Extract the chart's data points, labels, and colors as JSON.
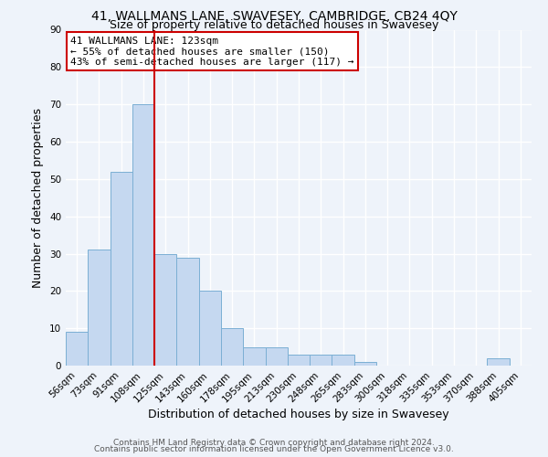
{
  "title": "41, WALLMANS LANE, SWAVESEY, CAMBRIDGE, CB24 4QY",
  "subtitle": "Size of property relative to detached houses in Swavesey",
  "xlabel": "Distribution of detached houses by size in Swavesey",
  "ylabel": "Number of detached properties",
  "bin_labels": [
    "56sqm",
    "73sqm",
    "91sqm",
    "108sqm",
    "125sqm",
    "143sqm",
    "160sqm",
    "178sqm",
    "195sqm",
    "213sqm",
    "230sqm",
    "248sqm",
    "265sqm",
    "283sqm",
    "300sqm",
    "318sqm",
    "335sqm",
    "353sqm",
    "370sqm",
    "388sqm",
    "405sqm"
  ],
  "bar_values": [
    9,
    31,
    52,
    70,
    30,
    29,
    20,
    10,
    5,
    5,
    3,
    3,
    3,
    1,
    0,
    0,
    0,
    0,
    0,
    2,
    0
  ],
  "bar_color": "#c5d8f0",
  "bar_edge_color": "#7bafd4",
  "bar_width": 1.0,
  "vline_x": 3.5,
  "vline_color": "#cc0000",
  "ylim": [
    0,
    90
  ],
  "yticks": [
    0,
    10,
    20,
    30,
    40,
    50,
    60,
    70,
    80,
    90
  ],
  "annotation_box_text": "41 WALLMANS LANE: 123sqm\n← 55% of detached houses are smaller (150)\n43% of semi-detached houses are larger (117) →",
  "footer_line1": "Contains HM Land Registry data © Crown copyright and database right 2024.",
  "footer_line2": "Contains public sector information licensed under the Open Government Licence v3.0.",
  "bg_color": "#eef3fa",
  "plot_bg_color": "#eef3fa",
  "grid_color": "#ffffff",
  "title_fontsize": 10,
  "subtitle_fontsize": 9,
  "axis_label_fontsize": 9,
  "tick_fontsize": 7.5,
  "annotation_fontsize": 8,
  "footer_fontsize": 6.5
}
